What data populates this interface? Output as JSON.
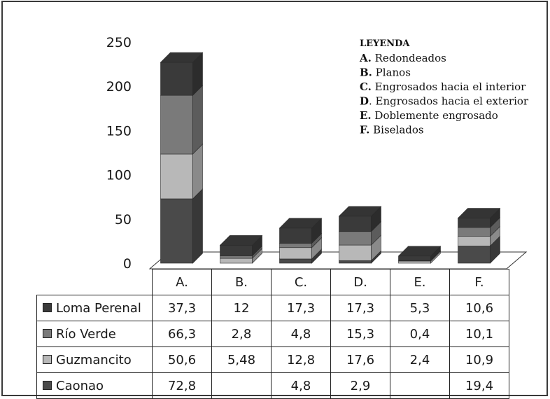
{
  "chart_data": {
    "type": "bar",
    "stacked": true,
    "three_d": true,
    "categories": [
      "A.",
      "B.",
      "C.",
      "D.",
      "E.",
      "F."
    ],
    "series": [
      {
        "name": "Loma Perenal",
        "values": [
          37.3,
          12,
          17.3,
          17.3,
          5.3,
          10.6
        ],
        "labels": [
          "37,3",
          "12",
          "17,3",
          "17,3",
          "5,3",
          "10,6"
        ],
        "color": "#3a3a3a"
      },
      {
        "name": "Río Verde",
        "values": [
          66.3,
          2.8,
          4.8,
          15.3,
          0.4,
          10.1
        ],
        "labels": [
          "66,3",
          "2,8",
          "4,8",
          "15,3",
          "0,4",
          "10,1"
        ],
        "color": "#7a7a7a"
      },
      {
        "name": "Guzmancito",
        "values": [
          50.6,
          5.48,
          12.8,
          17.6,
          2.4,
          10.9
        ],
        "labels": [
          "50,6",
          "5,48",
          "12,8",
          "17,6",
          "2,4",
          "10,9"
        ],
        "color": "#b8b8b8"
      },
      {
        "name": "Caonao",
        "values": [
          72.8,
          null,
          4.8,
          2.9,
          null,
          19.4
        ],
        "labels": [
          "72,8",
          "",
          "4,8",
          "2,9",
          "",
          "19,4"
        ],
        "color": "#4a4a4a"
      }
    ],
    "stack_order_bottom_to_top": [
      "Caonao",
      "Guzmancito",
      "Río Verde",
      "Loma Perenal"
    ],
    "yticks": [
      "0",
      "50",
      "100",
      "150",
      "200",
      "250"
    ],
    "ylim": [
      0,
      250
    ],
    "grid": false,
    "data_table": true,
    "legend": {
      "placement": "top-right",
      "title": "Leyenda",
      "items": [
        {
          "key": "A.",
          "text": "Redondeados"
        },
        {
          "key": "B.",
          "text": "Planos"
        },
        {
          "key": "C.",
          "text": "Engrosados hacia el interior"
        },
        {
          "key": "D",
          "text": ". Engrosados hacia el exterior"
        },
        {
          "key": "E.",
          "text": "Doblemente engrosado"
        },
        {
          "key": "F.",
          "text": "Biselados"
        }
      ]
    }
  }
}
